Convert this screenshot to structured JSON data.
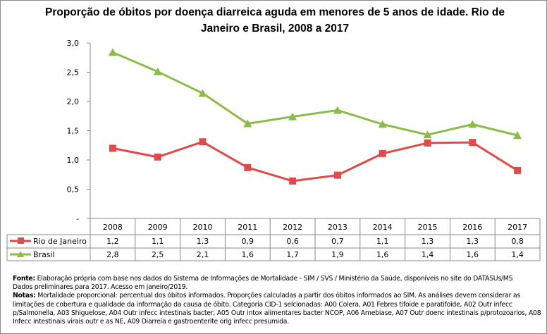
{
  "chart_data": {
    "type": "line",
    "title": "Proporção de óbitos por doença diarreica aguda em menores de 5 anos de idade. Rio de Janeiro e Brasil, 2008 a 2017",
    "categories": [
      "2008",
      "2009",
      "2010",
      "2011",
      "2012",
      "2013",
      "2014",
      "2015",
      "2016",
      "2017"
    ],
    "ylim": [
      0,
      3.0
    ],
    "yticks": [
      "-",
      "0,5",
      "1,0",
      "1,5",
      "2,0",
      "2,5",
      "3,0"
    ],
    "grid": false,
    "legend": "data-table",
    "series": [
      {
        "name": "Rio de Janeiro",
        "color": "#e04a4a",
        "marker": "square",
        "values": [
          1.2,
          1.05,
          1.31,
          0.87,
          0.64,
          0.74,
          1.11,
          1.29,
          1.3,
          0.82
        ],
        "table_labels": [
          "1,2",
          "1,1",
          "1,3",
          "0,9",
          "0,6",
          "0,7",
          "1,1",
          "1,3",
          "1,3",
          "0,8"
        ]
      },
      {
        "name": "Brasil",
        "color": "#8cbb4a",
        "marker": "triangle",
        "values": [
          2.84,
          2.51,
          2.14,
          1.62,
          1.74,
          1.85,
          1.61,
          1.43,
          1.61,
          1.42
        ],
        "table_labels": [
          "2,8",
          "2,5",
          "2,1",
          "1,6",
          "1,7",
          "1,9",
          "1,6",
          "1,4",
          "1,6",
          "1,4"
        ]
      }
    ]
  },
  "notes": {
    "fonte_label": "Fonte:",
    "fonte_text": " Elaboração própria com base nos dados do Sistema de Informações de Mortalidade - SIM / SVS / Ministério da Saúde, disponíveis no site do DATASUs/MS",
    "fonte_line2": "Dados preliminares para 2017. Acesso em janeiro/2019.",
    "notas_label": "Notas:",
    "notas_text": " Mortalidade proporcional: percentual dos óbitos informados. Proporções calculadas a partir dos óbitos informados ao SIM. As análises devem considerar as limitações de cobertura e qualidade da informação da causa de óbito. Categoria CID-1 selcionadas: A00 Colera, A01 Febres tifoide e paratifoide, A02 Outr infecc p/Salmonella, A03 Shiguelose, A04 Outr infecc intestinais bacter, A05 Outr intox alimentares bacter NCOP, A06 Amebiase, A07 Outr doenc intestinais p/protozoarios, A08 Infecc intestinais virais outr e as NE, A09 Diarreia e gastroenterite orig infecc presumida."
  }
}
